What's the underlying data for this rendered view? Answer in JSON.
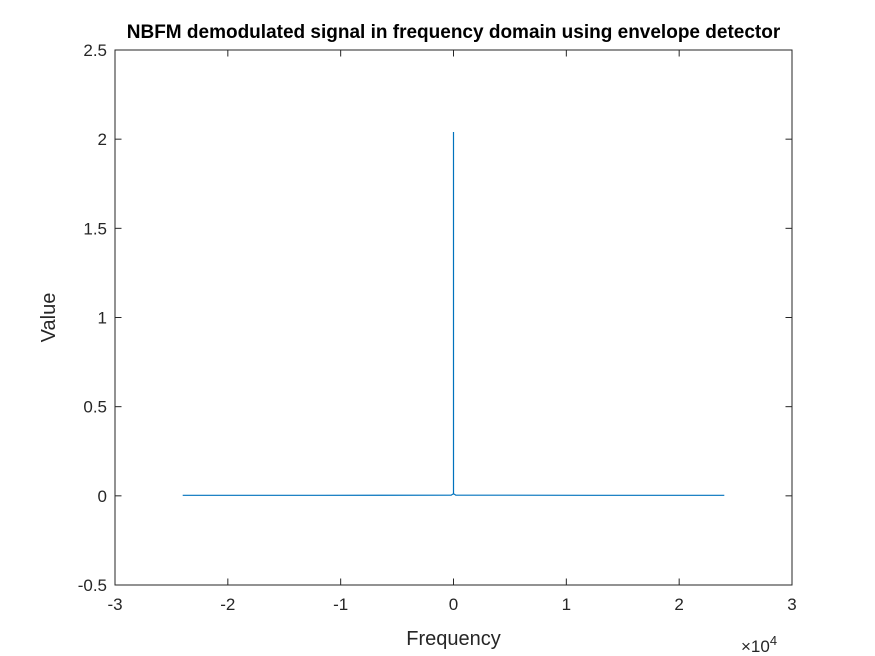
{
  "chart_data": {
    "type": "line",
    "title": "NBFM demodulated signal in frequency domain using envelope detector",
    "xlabel": "Frequency",
    "ylabel": "Value",
    "xlim": [
      -30000,
      30000
    ],
    "ylim": [
      -0.5,
      2.5
    ],
    "xticks": [
      -30000,
      -20000,
      -10000,
      0,
      10000,
      20000,
      30000
    ],
    "xtick_labels": [
      "-3",
      "-2",
      "-1",
      "0",
      "1",
      "2",
      "3"
    ],
    "x_exponent_label": "×10",
    "x_exponent_power": "4",
    "yticks": [
      -0.5,
      0,
      0.5,
      1,
      1.5,
      2,
      2.5
    ],
    "ytick_labels": [
      "-0.5",
      "0",
      "0.5",
      "1",
      "1.5",
      "2",
      "2.5"
    ],
    "grid": false,
    "series": [
      {
        "color": "#0072bd",
        "x": [
          -24000,
          -12000,
          -200,
          -50,
          -2,
          -1,
          0,
          1,
          2,
          50,
          200,
          12000,
          24000
        ],
        "y": [
          0.003,
          0.003,
          0.004,
          0.01,
          0.01,
          0.01,
          2.04,
          1.35,
          0.01,
          0.01,
          0.004,
          0.003,
          0.003
        ]
      }
    ]
  }
}
